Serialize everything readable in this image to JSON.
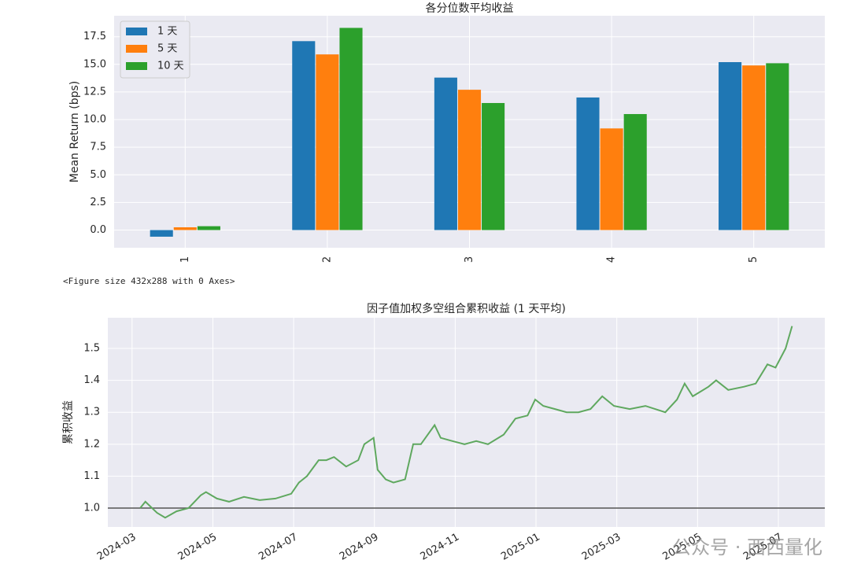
{
  "chart_data": [
    {
      "type": "bar",
      "title": "各分位数平均收益",
      "y_label": "Mean Return (bps)",
      "categories": [
        "1",
        "2",
        "3",
        "4",
        "5"
      ],
      "series": [
        {
          "name": "1 天",
          "color": "#1f77b4",
          "values": [
            -0.6,
            17.1,
            13.8,
            12.0,
            15.2
          ]
        },
        {
          "name": "5 天",
          "color": "#ff7f0e",
          "values": [
            0.25,
            15.9,
            12.7,
            9.2,
            14.9
          ]
        },
        {
          "name": "10 天",
          "color": "#2ca02c",
          "values": [
            0.35,
            18.3,
            11.5,
            10.5,
            15.1
          ]
        }
      ],
      "ylim": [
        -1.6,
        19.4
      ],
      "yticks": [
        {
          "value": 0,
          "label": "0.0"
        },
        2.5,
        {
          "value": 5,
          "label": "5.0"
        },
        7.5,
        {
          "value": 10,
          "label": "10.0"
        },
        12.5,
        {
          "value": 15,
          "label": "15.0"
        },
        17.5
      ],
      "grid": true,
      "legend": "upper-left"
    },
    {
      "type": "line",
      "title": "因子值加权多空组合累积收益 (1 天平均)",
      "y_label": "累积收益",
      "color": "#5fa85f",
      "x": [
        2.2,
        2.33,
        2.62,
        2.82,
        3.1,
        3.4,
        3.7,
        3.83,
        4.1,
        4.4,
        4.77,
        5.16,
        5.55,
        5.94,
        6.13,
        6.33,
        6.62,
        6.81,
        7.0,
        7.3,
        7.6,
        7.75,
        7.98,
        8.08,
        8.28,
        8.47,
        8.76,
        8.96,
        9.15,
        9.49,
        9.64,
        9.93,
        10.23,
        10.52,
        10.81,
        11.2,
        11.49,
        11.79,
        11.98,
        12.18,
        12.47,
        12.76,
        13.05,
        13.35,
        13.64,
        13.93,
        14.32,
        14.71,
        15.2,
        15.49,
        15.68,
        15.88,
        16.27,
        16.46,
        16.76,
        17.15,
        17.44,
        17.73,
        17.93,
        18.18,
        18.34
      ],
      "values": [
        1.0,
        1.02,
        0.985,
        0.97,
        0.99,
        1.0,
        1.04,
        1.05,
        1.03,
        1.02,
        1.035,
        1.025,
        1.03,
        1.045,
        1.08,
        1.1,
        1.15,
        1.15,
        1.16,
        1.13,
        1.15,
        1.2,
        1.22,
        1.12,
        1.09,
        1.08,
        1.09,
        1.2,
        1.2,
        1.26,
        1.22,
        1.21,
        1.2,
        1.21,
        1.2,
        1.23,
        1.28,
        1.29,
        1.34,
        1.32,
        1.31,
        1.3,
        1.3,
        1.31,
        1.35,
        1.32,
        1.31,
        1.32,
        1.3,
        1.34,
        1.39,
        1.35,
        1.38,
        1.4,
        1.37,
        1.38,
        1.39,
        1.45,
        1.44,
        1.5,
        1.57
      ],
      "xlim": [
        1.4,
        19.15
      ],
      "ylim": [
        0.941,
        1.596
      ],
      "xticks": [
        {
          "value": 2,
          "label": "2024-03"
        },
        {
          "value": 4,
          "label": "2024-05"
        },
        {
          "value": 6,
          "label": "2024-07"
        },
        {
          "value": 8,
          "label": "2024-09"
        },
        {
          "value": 10,
          "label": "2024-11"
        },
        {
          "value": 12,
          "label": "2025-01"
        },
        {
          "value": 14,
          "label": "2025-03"
        },
        {
          "value": 16,
          "label": "2025-05"
        },
        {
          "value": 18,
          "label": "2025-07"
        }
      ],
      "yticks": [
        {
          "value": 1,
          "label": "1.0"
        },
        1.1,
        1.2,
        1.3,
        1.4,
        1.5
      ],
      "hline": 1.0,
      "grid": true
    }
  ],
  "figure_note": "<Figure size 432x288 with 0 Axes>",
  "watermark": "公众号 · 西西量化"
}
